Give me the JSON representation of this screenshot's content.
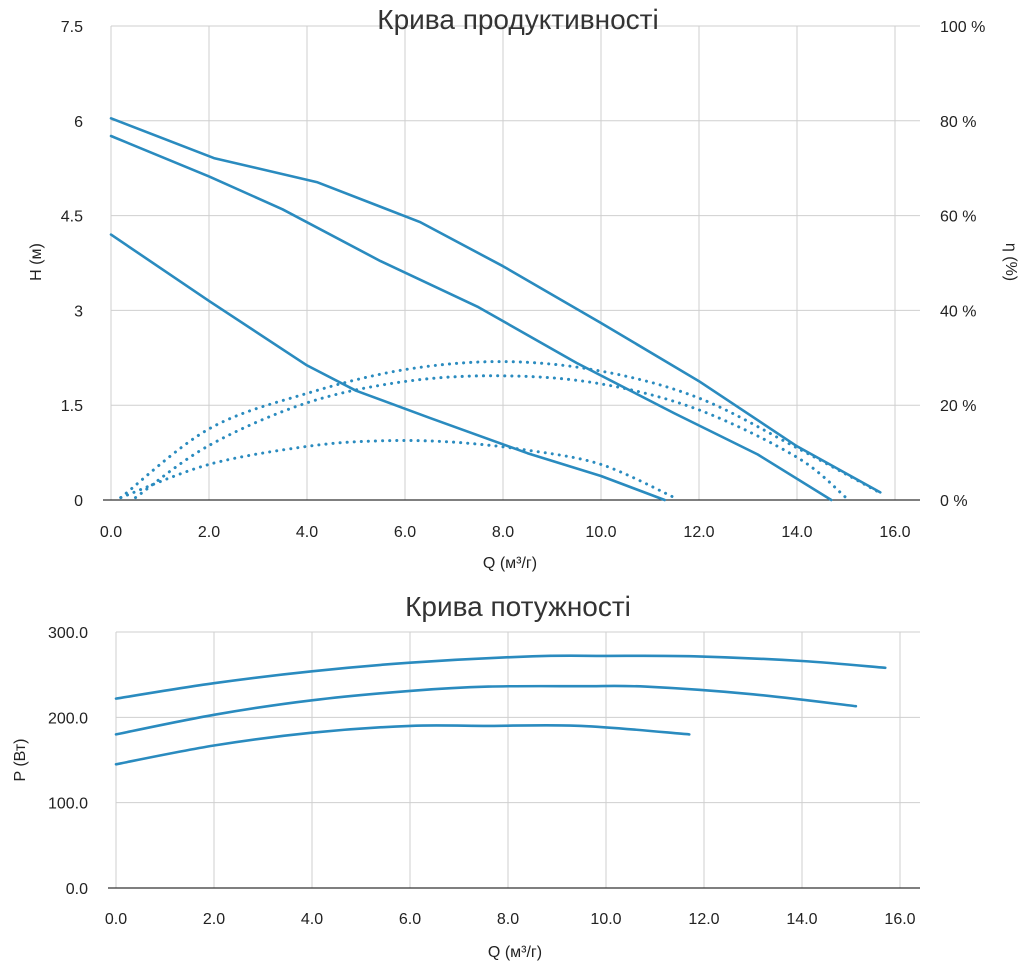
{
  "chart_data": [
    {
      "type": "line",
      "title": "Крива продуктивності",
      "xlabel": "Q (м³/г)",
      "ylabel": "H (м)",
      "y2label": "η (%)",
      "xlim": [
        0,
        16.5
      ],
      "ylim": [
        0,
        7.5
      ],
      "y2lim": [
        0,
        100
      ],
      "x_ticks": [
        "0.0",
        "2.0",
        "4.0",
        "6.0",
        "8.0",
        "10.0",
        "12.0",
        "14.0",
        "16.0"
      ],
      "y_ticks": [
        "0",
        "1.5",
        "3",
        "4.5",
        "6",
        "7.5"
      ],
      "y2_ticks": [
        "0 %",
        "20 %",
        "40 %",
        "60 %",
        "80 %",
        "100 %"
      ],
      "grid": true,
      "color": "#2a8bbf",
      "series": [
        {
          "axis": "H",
          "style": "solid",
          "points": [
            [
              0,
              6.04
            ],
            [
              2.1,
              5.41
            ],
            [
              4.2,
              5.03
            ],
            [
              6.3,
              4.4
            ],
            [
              8.0,
              3.7
            ],
            [
              10.0,
              2.8
            ],
            [
              12.0,
              1.88
            ],
            [
              14.0,
              0.85
            ],
            [
              15.7,
              0.12
            ]
          ]
        },
        {
          "axis": "H",
          "style": "solid",
          "points": [
            [
              0,
              5.76
            ],
            [
              2.0,
              5.12
            ],
            [
              3.5,
              4.6
            ],
            [
              5.5,
              3.78
            ],
            [
              7.5,
              3.05
            ],
            [
              9.5,
              2.17
            ],
            [
              11.5,
              1.37
            ],
            [
              13.2,
              0.72
            ],
            [
              14.7,
              0.0
            ]
          ]
        },
        {
          "axis": "H",
          "style": "solid",
          "points": [
            [
              0,
              4.2
            ],
            [
              2.0,
              3.15
            ],
            [
              4.0,
              2.13
            ],
            [
              5.0,
              1.73
            ],
            [
              6.5,
              1.3
            ],
            [
              8.5,
              0.74
            ],
            [
              10.0,
              0.38
            ],
            [
              11.3,
              0.0
            ]
          ]
        },
        {
          "axis": "eta",
          "style": "dotted",
          "points": [
            [
              0.2,
              0.5
            ],
            [
              2.0,
              15
            ],
            [
              4.0,
              22.5
            ],
            [
              6.0,
              27.5
            ],
            [
              8.0,
              29.2
            ],
            [
              10.0,
              27.2
            ],
            [
              12.0,
              21.5
            ],
            [
              14.0,
              11
            ],
            [
              15.7,
              1.5
            ]
          ]
        },
        {
          "axis": "eta",
          "style": "dotted",
          "points": [
            [
              0.5,
              0.5
            ],
            [
              2.0,
              11.5
            ],
            [
              4.0,
              20.5
            ],
            [
              6.0,
              25
            ],
            [
              8.0,
              26.2
            ],
            [
              10.0,
              24.5
            ],
            [
              12.0,
              19
            ],
            [
              14.0,
              9
            ],
            [
              15.0,
              0.5
            ]
          ]
        },
        {
          "axis": "eta",
          "style": "dotted",
          "points": [
            [
              0.2,
              0.5
            ],
            [
              2.0,
              7.5
            ],
            [
              4.0,
              11.3
            ],
            [
              5.5,
              12.5
            ],
            [
              7.0,
              12.2
            ],
            [
              8.5,
              10.5
            ],
            [
              10.0,
              7.5
            ],
            [
              11.5,
              0.5
            ]
          ]
        }
      ]
    },
    {
      "type": "line",
      "title": "Крива потужності",
      "xlabel": "Q (м³/г)",
      "ylabel": "P (Вт)",
      "xlim": [
        0,
        16.5
      ],
      "ylim": [
        0,
        300
      ],
      "x_ticks": [
        "0.0",
        "2.0",
        "4.0",
        "6.0",
        "8.0",
        "10.0",
        "12.0",
        "14.0",
        "16.0"
      ],
      "y_ticks": [
        "0.0",
        "100.0",
        "200.0",
        "300.0"
      ],
      "grid": true,
      "color": "#2a8bbf",
      "series": [
        {
          "style": "solid",
          "points": [
            [
              0,
              222
            ],
            [
              2.0,
              240
            ],
            [
              4.0,
              254
            ],
            [
              6.0,
              264
            ],
            [
              8.5,
              271.5
            ],
            [
              10.0,
              272
            ],
            [
              11.8,
              271.5
            ],
            [
              14.0,
              266
            ],
            [
              15.7,
              258
            ]
          ]
        },
        {
          "style": "solid",
          "points": [
            [
              0,
              180
            ],
            [
              2.0,
              203
            ],
            [
              4.0,
              220
            ],
            [
              6.0,
              231
            ],
            [
              7.6,
              236
            ],
            [
              9.5,
              236.5
            ],
            [
              10.8,
              236
            ],
            [
              13.0,
              227
            ],
            [
              15.1,
              213
            ]
          ]
        },
        {
          "style": "solid",
          "points": [
            [
              0,
              145
            ],
            [
              2.0,
              167
            ],
            [
              4.0,
              182
            ],
            [
              6.0,
              190
            ],
            [
              7.5,
              190
            ],
            [
              9.5,
              190
            ],
            [
              11.7,
              180
            ]
          ]
        }
      ]
    }
  ]
}
